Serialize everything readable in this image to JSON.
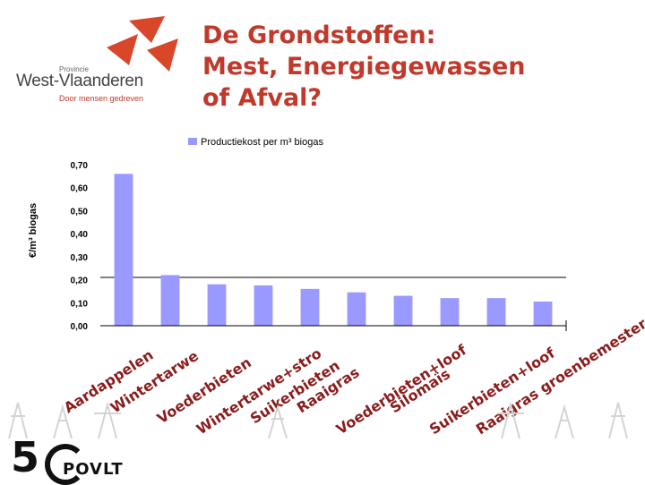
{
  "logo": {
    "province_label": "Provincie",
    "name": "West-Vlaanderen",
    "slogan": "Door mensen gedreven",
    "colors": {
      "red": "#d9472b",
      "gray": "#555555"
    }
  },
  "title": {
    "lines": [
      "De Grondstoffen:",
      "Mest, Energiegewassen",
      "of Afval?"
    ],
    "color": "#c0392b"
  },
  "footer": {
    "logo_number": "5",
    "logo_text": "POVLT"
  },
  "chart_data": {
    "type": "bar",
    "legend": "Productiekost per m³ biogas",
    "ylabel": "€/m³ biogas",
    "xlabel": "",
    "ylim": [
      0,
      0.7
    ],
    "yticks": [
      "0,00",
      "0,10",
      "0,20",
      "0,30",
      "0,40",
      "0,50",
      "0,60",
      "0,70"
    ],
    "reference_line": 0.21,
    "bar_color": "#9999ff",
    "categories": [
      "Aardappelen",
      "Wintertarwe",
      "Voederbieten",
      "Wintertarwe+stro",
      "Suikerbieten",
      "Raaigras",
      "Voederbieten+loof",
      "Silomaïs",
      "Suikerbieten+loof",
      "Raaigras groenbemester"
    ],
    "values": [
      0.66,
      0.22,
      0.18,
      0.175,
      0.16,
      0.145,
      0.13,
      0.12,
      0.12,
      0.105
    ]
  }
}
